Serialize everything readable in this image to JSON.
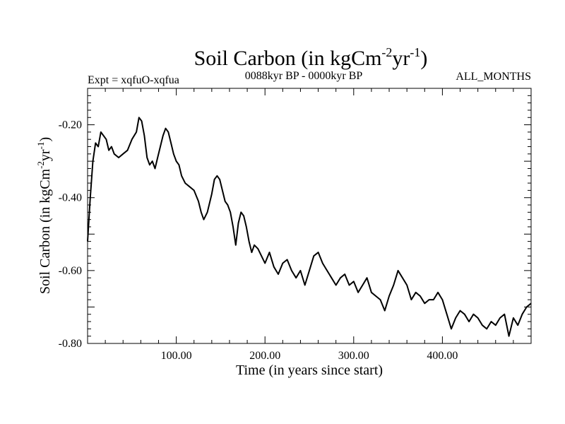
{
  "chart_data": {
    "type": "line",
    "title": "Soil Carbon (in kgCm",
    "title_sup1": "-2",
    "title_mid": "yr",
    "title_sup2": "-1",
    "title_end": ")",
    "subtitle_left": "Expt = xqfuO-xqfua",
    "subtitle_center": "0088kyr BP - 0000kyr BP",
    "subtitle_right": "ALL_MONTHS",
    "xlabel": "Time (in years since start)",
    "ylabel": "Soil Carbon (in kgCm",
    "ylabel_sup1": "-2",
    "ylabel_mid": "yr",
    "ylabel_sup2": "-1",
    "ylabel_end": ")",
    "xlim": [
      0,
      500
    ],
    "ylim": [
      -0.8,
      -0.1
    ],
    "x_ticks": [
      {
        "value": 100,
        "label": "100.00"
      },
      {
        "value": 200,
        "label": "200.00"
      },
      {
        "value": 300,
        "label": "300.00"
      },
      {
        "value": 400,
        "label": "400.00"
      }
    ],
    "y_ticks": [
      {
        "value": -0.2,
        "label": "-0.20"
      },
      {
        "value": -0.4,
        "label": "-0.40"
      },
      {
        "value": -0.6,
        "label": "-0.60"
      },
      {
        "value": -0.8,
        "label": "-0.80"
      }
    ],
    "series": [
      {
        "name": "soil_carbon",
        "color": "#000000",
        "x": [
          0,
          3,
          6,
          9,
          12,
          15,
          18,
          21,
          24,
          27,
          30,
          35,
          40,
          45,
          50,
          55,
          58,
          61,
          64,
          67,
          70,
          73,
          76,
          79,
          82,
          85,
          88,
          91,
          94,
          97,
          100,
          103,
          106,
          110,
          115,
          120,
          125,
          128,
          131,
          135,
          140,
          143,
          146,
          149,
          152,
          155,
          158,
          161,
          164,
          167,
          170,
          173,
          176,
          179,
          182,
          185,
          188,
          192,
          196,
          200,
          205,
          210,
          215,
          220,
          225,
          230,
          235,
          240,
          245,
          250,
          255,
          260,
          265,
          270,
          275,
          280,
          285,
          290,
          295,
          300,
          305,
          310,
          315,
          320,
          325,
          330,
          335,
          340,
          345,
          350,
          355,
          360,
          365,
          370,
          375,
          380,
          385,
          390,
          395,
          400,
          405,
          410,
          415,
          420,
          425,
          430,
          435,
          440,
          445,
          450,
          455,
          460,
          465,
          470,
          475,
          480,
          485,
          490,
          495,
          500
        ],
        "y": [
          -0.52,
          -0.4,
          -0.3,
          -0.25,
          -0.26,
          -0.22,
          -0.23,
          -0.24,
          -0.27,
          -0.26,
          -0.28,
          -0.29,
          -0.28,
          -0.27,
          -0.24,
          -0.22,
          -0.18,
          -0.19,
          -0.23,
          -0.29,
          -0.31,
          -0.3,
          -0.32,
          -0.29,
          -0.26,
          -0.23,
          -0.21,
          -0.22,
          -0.25,
          -0.28,
          -0.3,
          -0.31,
          -0.34,
          -0.36,
          -0.37,
          -0.38,
          -0.41,
          -0.44,
          -0.46,
          -0.44,
          -0.39,
          -0.35,
          -0.34,
          -0.35,
          -0.38,
          -0.41,
          -0.42,
          -0.44,
          -0.48,
          -0.53,
          -0.47,
          -0.44,
          -0.45,
          -0.48,
          -0.52,
          -0.55,
          -0.53,
          -0.54,
          -0.56,
          -0.58,
          -0.55,
          -0.59,
          -0.61,
          -0.58,
          -0.57,
          -0.6,
          -0.62,
          -0.6,
          -0.64,
          -0.6,
          -0.56,
          -0.55,
          -0.58,
          -0.6,
          -0.62,
          -0.64,
          -0.62,
          -0.61,
          -0.64,
          -0.63,
          -0.66,
          -0.64,
          -0.62,
          -0.66,
          -0.67,
          -0.68,
          -0.71,
          -0.67,
          -0.64,
          -0.6,
          -0.62,
          -0.64,
          -0.68,
          -0.66,
          -0.67,
          -0.69,
          -0.68,
          -0.68,
          -0.66,
          -0.68,
          -0.72,
          -0.76,
          -0.73,
          -0.71,
          -0.72,
          -0.74,
          -0.72,
          -0.73,
          -0.75,
          -0.76,
          -0.74,
          -0.75,
          -0.73,
          -0.72,
          -0.78,
          -0.73,
          -0.75,
          -0.72,
          -0.7,
          -0.69
        ]
      }
    ]
  }
}
